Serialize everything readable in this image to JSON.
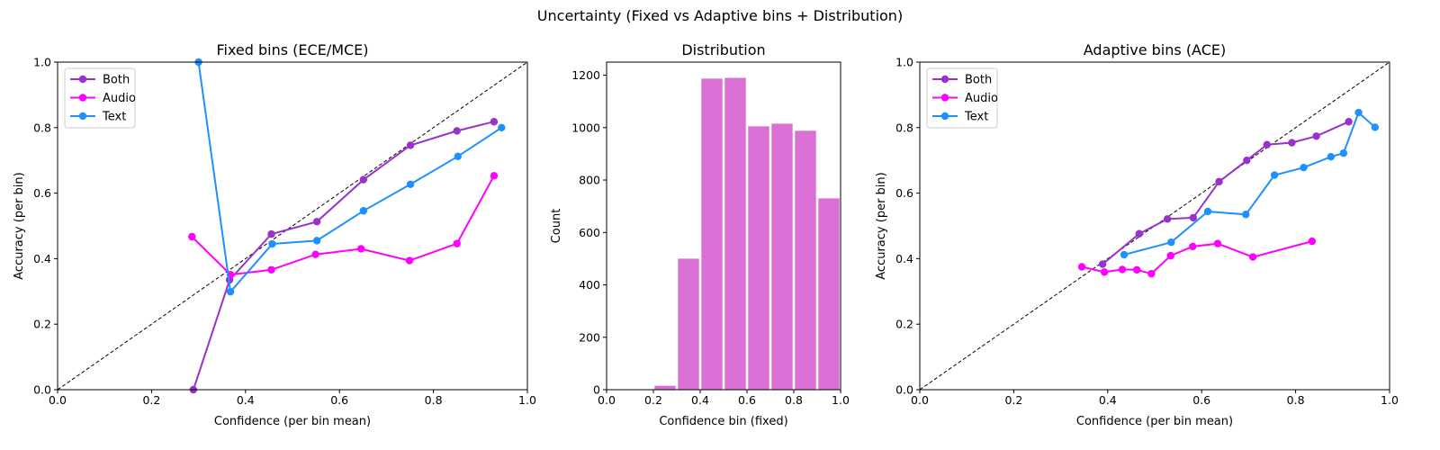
{
  "suptitle": "Uncertainty (Fixed vs Adaptive bins + Distribution)",
  "colors": {
    "both": "#9932CC",
    "audio": "#FF00FF",
    "text": "#1E90FF",
    "hist": "#DA70D6",
    "diagonal": "#000000"
  },
  "chart_data": [
    {
      "type": "line",
      "title": "Fixed bins (ECE/MCE)",
      "xlabel": "Confidence (per bin mean)",
      "ylabel": "Accuracy (per bin)",
      "xlim": [
        0,
        1
      ],
      "ylim": [
        0,
        1
      ],
      "xticks": [
        "0.0",
        "0.2",
        "0.4",
        "0.6",
        "0.8",
        "1.0"
      ],
      "yticks": [
        "0.0",
        "0.2",
        "0.4",
        "0.6",
        "0.8",
        "1.0"
      ],
      "legend": "top-left",
      "diagonal": true,
      "series": [
        {
          "name": "Both",
          "color": "#9932CC",
          "x": [
            0.289,
            0.366,
            0.455,
            0.552,
            0.651,
            0.751,
            0.85,
            0.929
          ],
          "y": [
            0.0,
            0.335,
            0.475,
            0.513,
            0.641,
            0.746,
            0.79,
            0.818
          ]
        },
        {
          "name": "Audio",
          "color": "#FF00FF",
          "x": [
            0.286,
            0.368,
            0.455,
            0.549,
            0.646,
            0.749,
            0.85,
            0.929
          ],
          "y": [
            0.467,
            0.351,
            0.366,
            0.413,
            0.43,
            0.394,
            0.446,
            0.653
          ]
        },
        {
          "name": "Text",
          "color": "#1E90FF",
          "x": [
            0.3,
            0.368,
            0.457,
            0.552,
            0.651,
            0.751,
            0.852,
            0.945
          ],
          "y": [
            1.0,
            0.299,
            0.445,
            0.455,
            0.546,
            0.627,
            0.712,
            0.8
          ]
        }
      ]
    },
    {
      "type": "bar",
      "title": "Distribution",
      "xlabel": "Confidence bin (fixed)",
      "ylabel": "Count",
      "xlim": [
        0,
        1
      ],
      "ylim": [
        0,
        1250
      ],
      "xticks": [
        "0.0",
        "0.2",
        "0.4",
        "0.6",
        "0.8",
        "1.0"
      ],
      "yticks": [
        "0",
        "200",
        "400",
        "600",
        "800",
        "1000",
        "1200"
      ],
      "bin_edges": [
        0.0,
        0.1,
        0.2,
        0.3,
        0.4,
        0.5,
        0.6,
        0.7,
        0.8,
        0.9,
        1.0
      ],
      "values": [
        0,
        0,
        15,
        500,
        1187,
        1190,
        1005,
        1015,
        988,
        730
      ],
      "color": "#DA70D6"
    },
    {
      "type": "line",
      "title": "Adaptive bins (ACE)",
      "xlabel": "Confidence (per bin mean)",
      "ylabel": "Accuracy (per bin)",
      "xlim": [
        0,
        1
      ],
      "ylim": [
        0,
        1
      ],
      "xticks": [
        "0.0",
        "0.2",
        "0.4",
        "0.6",
        "0.8",
        "1.0"
      ],
      "yticks": [
        "0.0",
        "0.2",
        "0.4",
        "0.6",
        "0.8",
        "1.0"
      ],
      "legend": "top-left",
      "diagonal": true,
      "series": [
        {
          "name": "Both",
          "color": "#9932CC",
          "x": [
            0.389,
            0.467,
            0.527,
            0.582,
            0.637,
            0.696,
            0.739,
            0.792,
            0.844,
            0.913
          ],
          "y": [
            0.383,
            0.476,
            0.521,
            0.525,
            0.635,
            0.7,
            0.748,
            0.754,
            0.774,
            0.818
          ]
        },
        {
          "name": "Audio",
          "color": "#FF00FF",
          "x": [
            0.345,
            0.393,
            0.431,
            0.462,
            0.493,
            0.534,
            0.581,
            0.634,
            0.709,
            0.835
          ],
          "y": [
            0.375,
            0.359,
            0.367,
            0.366,
            0.354,
            0.409,
            0.437,
            0.446,
            0.405,
            0.453
          ]
        },
        {
          "name": "Text",
          "color": "#1E90FF",
          "x": [
            0.435,
            0.535,
            0.613,
            0.694,
            0.755,
            0.817,
            0.875,
            0.902,
            0.934,
            0.969
          ],
          "y": [
            0.412,
            0.45,
            0.544,
            0.535,
            0.655,
            0.678,
            0.711,
            0.722,
            0.846,
            0.801
          ]
        }
      ]
    }
  ]
}
